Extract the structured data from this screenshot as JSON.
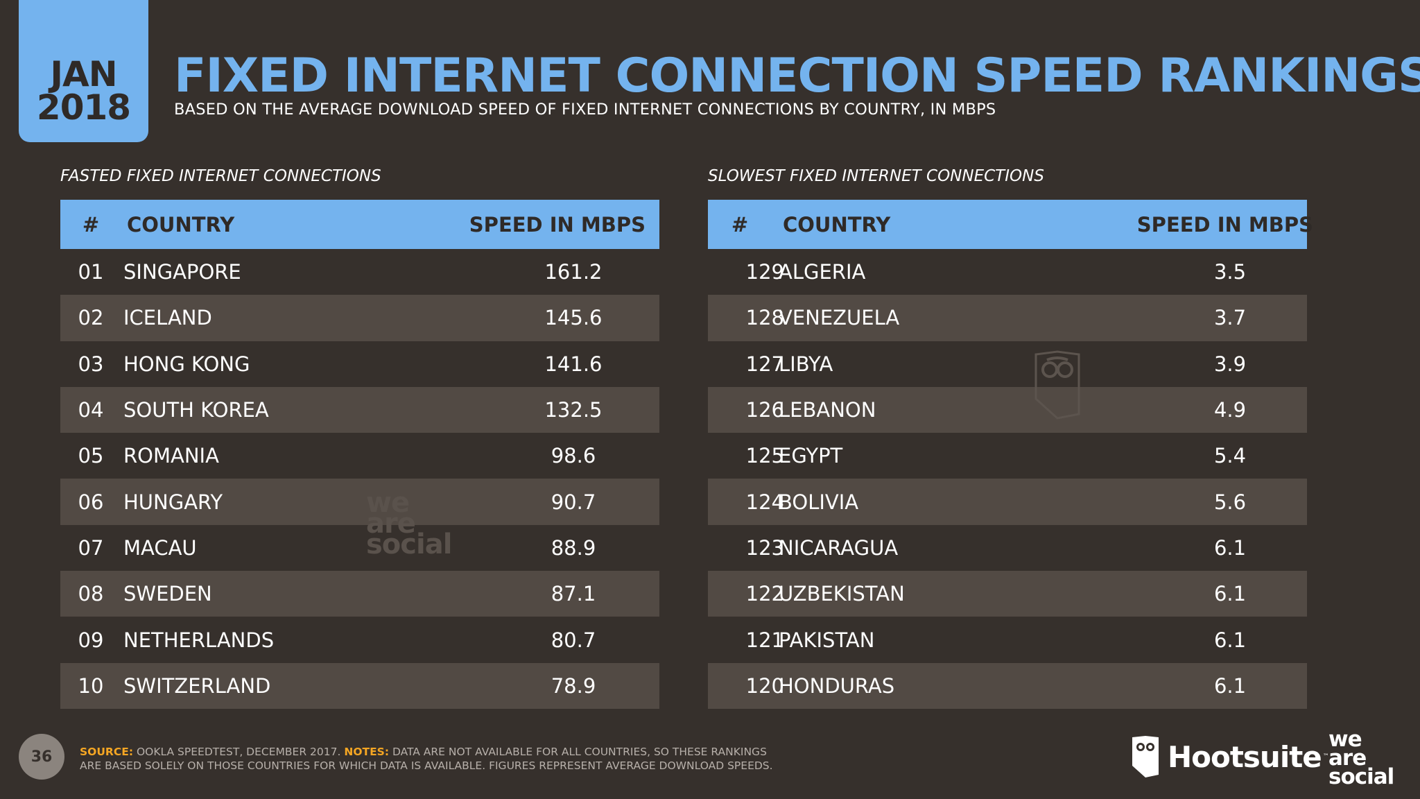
{
  "badge": {
    "month": "JAN",
    "year": "2018"
  },
  "title": "FIXED INTERNET CONNECTION SPEED RANKINGS",
  "subtitle": "BASED ON THE AVERAGE DOWNLOAD SPEED OF FIXED INTERNET CONNECTIONS BY COUNTRY, IN MBPS",
  "fastest": {
    "label": "FASTED FIXED INTERNET CONNECTIONS",
    "headers": {
      "rank": "#",
      "country": "COUNTRY",
      "speed": "SPEED IN MBPS"
    },
    "rows": [
      {
        "rank": "01",
        "country": "SINGAPORE",
        "speed": "161.2"
      },
      {
        "rank": "02",
        "country": "ICELAND",
        "speed": "145.6"
      },
      {
        "rank": "03",
        "country": "HONG KONG",
        "speed": "141.6"
      },
      {
        "rank": "04",
        "country": "SOUTH KOREA",
        "speed": "132.5"
      },
      {
        "rank": "05",
        "country": "ROMANIA",
        "speed": "98.6"
      },
      {
        "rank": "06",
        "country": "HUNGARY",
        "speed": "90.7"
      },
      {
        "rank": "07",
        "country": "MACAU",
        "speed": "88.9"
      },
      {
        "rank": "08",
        "country": "SWEDEN",
        "speed": "87.1"
      },
      {
        "rank": "09",
        "country": "NETHERLANDS",
        "speed": "80.7"
      },
      {
        "rank": "10",
        "country": "SWITZERLAND",
        "speed": "78.9"
      }
    ]
  },
  "slowest": {
    "label": "SLOWEST FIXED INTERNET CONNECTIONS",
    "headers": {
      "rank": "#",
      "country": "COUNTRY",
      "speed": "SPEED IN MBPS"
    },
    "rows": [
      {
        "rank": "129",
        "country": "ALGERIA",
        "speed": "3.5"
      },
      {
        "rank": "128",
        "country": "VENEZUELA",
        "speed": "3.7"
      },
      {
        "rank": "127",
        "country": "LIBYA",
        "speed": "3.9"
      },
      {
        "rank": "126",
        "country": "LEBANON",
        "speed": "4.9"
      },
      {
        "rank": "125",
        "country": "EGYPT",
        "speed": "5.4"
      },
      {
        "rank": "124",
        "country": "BOLIVIA",
        "speed": "5.6"
      },
      {
        "rank": "123",
        "country": "NICARAGUA",
        "speed": "6.1"
      },
      {
        "rank": "122",
        "country": "UZBEKISTAN",
        "speed": "6.1"
      },
      {
        "rank": "121",
        "country": "PAKISTAN",
        "speed": "6.1"
      },
      {
        "rank": "120",
        "country": "HONDURAS",
        "speed": "6.1"
      }
    ]
  },
  "footer": {
    "page_number": "36",
    "source_label": "SOURCE:",
    "source_text": "OOKLA SPEEDTEST, DECEMBER 2017.",
    "notes_label": "NOTES:",
    "notes_text": "DATA ARE NOT AVAILABLE FOR ALL COUNTRIES, SO THESE RANKINGS ARE BASED SOLELY ON THOSE COUNTRIES FOR WHICH DATA IS AVAILABLE. FIGURES REPRESENT AVERAGE DOWNLOAD SPEEDS."
  },
  "logos": {
    "hootsuite": "Hootsuite",
    "hootsuite_tm": "™",
    "wearesocial": [
      "we",
      "are",
      "social"
    ]
  },
  "watermark": {
    "wearesocial": [
      "we",
      "are",
      "social"
    ]
  },
  "colors": {
    "accent": "#74b3ee",
    "background": "#36302c",
    "row_alt": "#524a44",
    "highlight": "#f5a623"
  }
}
